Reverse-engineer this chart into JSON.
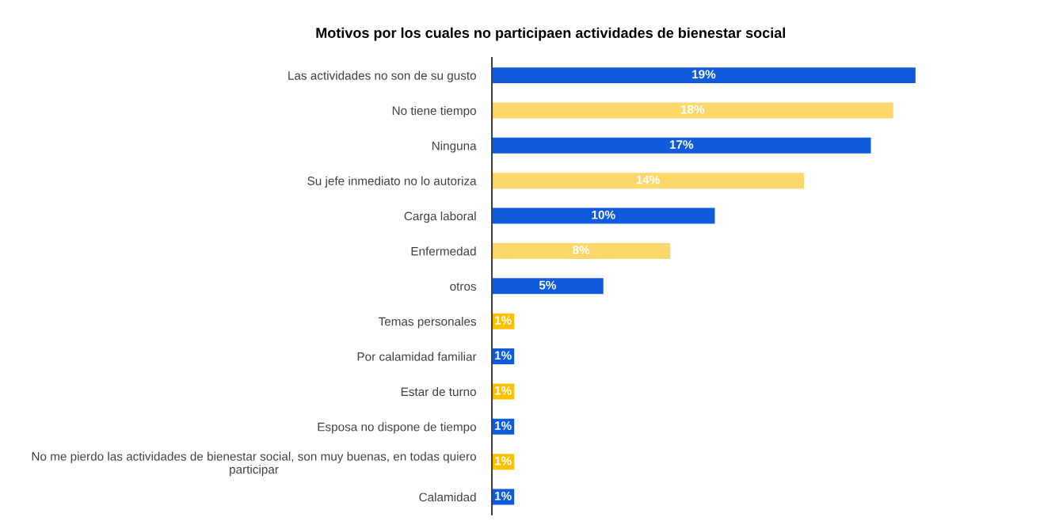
{
  "chart_data": {
    "type": "bar",
    "orientation": "horizontal",
    "title": "Motivos por los cuales no participaen actividades de bienestar social",
    "categories": [
      "Las actividades no son de su gusto",
      "No tiene tiempo",
      "Ninguna",
      "Su jefe inmediato no lo autoriza",
      "Carga laboral",
      "Enfermedad",
      "otros",
      "Temas personales",
      "Por calamidad familiar",
      "Estar de turno",
      "Esposa no dispone de tiempo",
      "No me pierdo las actividades de bienestar social, son muy buenas, en todas quiero\nparticipar",
      "Calamidad"
    ],
    "values": [
      19,
      18,
      17,
      14,
      10,
      8,
      5,
      1,
      1,
      1,
      1,
      1,
      1
    ],
    "value_labels": [
      "19%",
      "18%",
      "17%",
      "14%",
      "10%",
      "8%",
      "5%",
      "1%",
      "1%",
      "1%",
      "1%",
      "1%",
      "1%"
    ],
    "colors": [
      "#0f5bdc",
      "#fcd76a",
      "#0f5bdc",
      "#fcd76a",
      "#0f5bdc",
      "#fcd76a",
      "#0f5bdc",
      "#ffc000",
      "#0f5bdc",
      "#ffc000",
      "#0f5bdc",
      "#ffc000",
      "#0f5bdc"
    ],
    "grid": false,
    "legend": false
  }
}
